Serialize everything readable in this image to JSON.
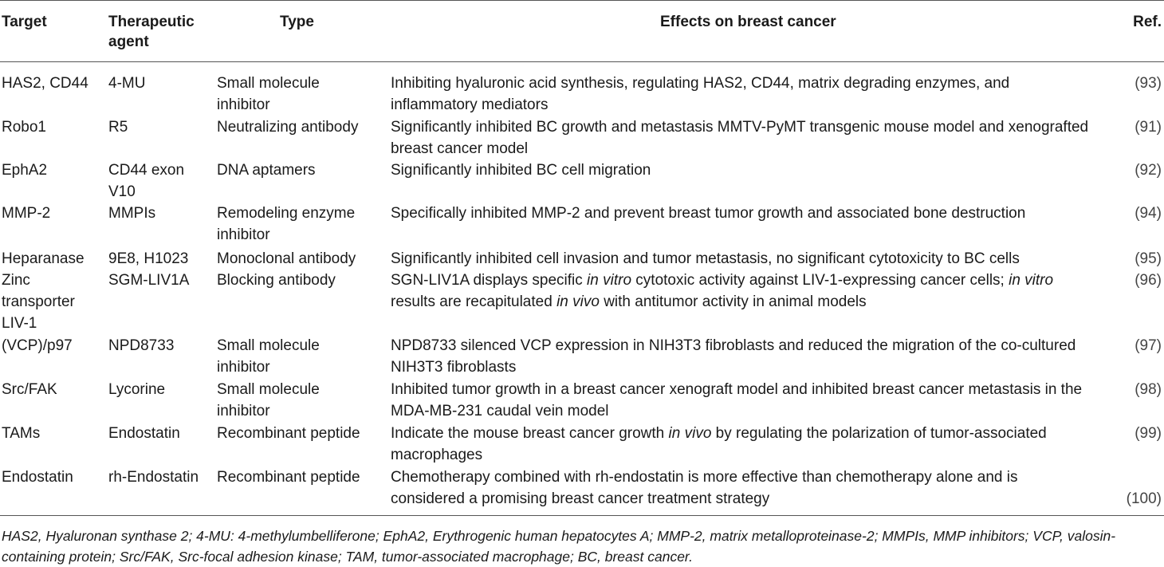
{
  "headers": {
    "target": "Target",
    "agent_line1": "Therapeutic",
    "agent_line2": "agent",
    "type": "Type",
    "effects": "Effects on breast cancer",
    "ref": "Ref."
  },
  "rows": [
    {
      "target": [
        "HAS2, CD44"
      ],
      "agent": [
        "4-MU"
      ],
      "type": [
        "Small molecule",
        "inhibitor"
      ],
      "effects": [
        [
          "Inhibiting hyaluronic acid synthesis, regulating HAS2, CD44, matrix degrading enzymes, and"
        ],
        [
          "inflammatory mediators"
        ]
      ],
      "ref": "(93)"
    },
    {
      "target": [
        "Robo1"
      ],
      "agent": [
        "R5"
      ],
      "type": [
        "Neutralizing antibody"
      ],
      "effects": [
        [
          "Significantly inhibited BC growth and metastasis MMTV-PyMT transgenic mouse model and xenografted"
        ],
        [
          "breast cancer model"
        ]
      ],
      "ref": "(91)"
    },
    {
      "target": [
        "EphA2"
      ],
      "agent": [
        "CD44 exon",
        "V10"
      ],
      "type": [
        "DNA aptamers"
      ],
      "effects": [
        [
          "Significantly inhibited BC cell migration"
        ]
      ],
      "ref": "(92)"
    },
    {
      "target": [
        "MMP-2"
      ],
      "agent": [
        "MMPIs"
      ],
      "type": [
        "Remodeling enzyme",
        "inhibitor"
      ],
      "effects": [
        [
          "Specifically inhibited MMP-2 and prevent breast tumor growth and associated bone destruction"
        ]
      ],
      "ref": "(94)"
    },
    {
      "target": [
        "Heparanase"
      ],
      "agent": [
        "9E8, H1023"
      ],
      "type": [
        "Monoclonal antibody"
      ],
      "effects": [
        [
          "Significantly inhibited cell invasion and tumor metastasis, no significant cytotoxicity to BC cells"
        ]
      ],
      "ref": "(95)"
    },
    {
      "target": [
        "Zinc",
        "transporter",
        "LIV-1"
      ],
      "agent": [
        "SGM-LIV1A"
      ],
      "type": [
        "Blocking antibody"
      ],
      "effects": [
        [
          "SGN-LIV1A displays specific ",
          "in vitro",
          " cytotoxic activity against LIV-1-expressing cancer cells; ",
          "in vitro"
        ],
        [
          "results are recapitulated ",
          "in vivo",
          " with antitumor activity in animal models"
        ]
      ],
      "ref": "(96)"
    },
    {
      "target": [
        "(VCP)/p97"
      ],
      "agent": [
        "NPD8733"
      ],
      "type": [
        "Small molecule",
        "inhibitor"
      ],
      "effects": [
        [
          "NPD8733 silenced VCP expression in NIH3T3 fibroblasts and reduced the migration of the co-cultured"
        ],
        [
          "NIH3T3 fibroblasts"
        ]
      ],
      "ref": "(97)"
    },
    {
      "target": [
        "Src/FAK"
      ],
      "agent": [
        "Lycorine"
      ],
      "type": [
        "Small molecule",
        "inhibitor"
      ],
      "effects": [
        [
          "Inhibited tumor growth in a breast cancer xenograft model and inhibited breast cancer metastasis in the"
        ],
        [
          "MDA-MB-231 caudal vein model"
        ]
      ],
      "ref": "(98)"
    },
    {
      "target": [
        "TAMs"
      ],
      "agent": [
        "Endostatin"
      ],
      "type": [
        "Recombinant peptide"
      ],
      "effects": [
        [
          "Indicate the mouse breast cancer growth ",
          "in vivo",
          " by regulating the polarization of tumor-associated"
        ],
        [
          "macrophages"
        ]
      ],
      "ref": "(99)"
    },
    {
      "target": [
        "Endostatin"
      ],
      "agent": [
        "rh-Endostatin"
      ],
      "type": [
        "Recombinant peptide"
      ],
      "effects": [
        [
          "Chemotherapy combined with rh-endostatin is more effective than chemotherapy alone and is"
        ],
        [
          "considered a promising breast cancer treatment strategy"
        ]
      ],
      "ref": "(100)"
    }
  ],
  "footnote": [
    "HAS2, Hyaluronan synthase 2; 4-MU: 4-methylumbelliferone; EphA2, Erythrogenic human hepatocytes A; MMP-2, matrix metalloproteinase-2; MMPIs, MMP inhibitors; VCP, valosin-",
    "containing protein; Src/FAK, Src-focal adhesion kinase; TAM, tumor-associated macrophage; BC, breast cancer."
  ]
}
